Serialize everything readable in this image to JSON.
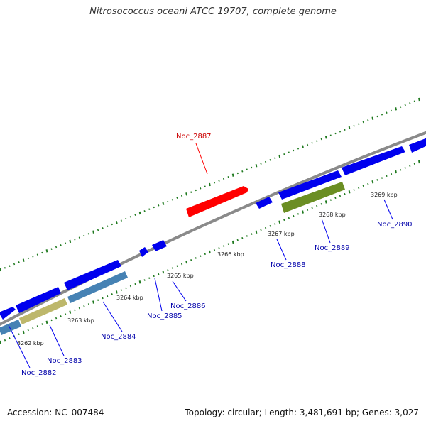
{
  "title": "Nitrosococcus oceani ATCC 19707, complete genome",
  "accession_text": "Accession: NC_007484",
  "summary_text": "Topology: circular; Length: 3,481,691 bp; Genes: 3,027",
  "colors": {
    "backbone": "#8a8a8a",
    "tick": "#1f7a1f",
    "cds": "#0000ee",
    "highlight": "#ff0000",
    "steelblue": "#4682b4",
    "khaki": "#bdb76b",
    "olive": "#6b8e23",
    "label_blue": "#0000aa",
    "label_red": "#cc0000"
  },
  "kbp_labels": [
    "3262 kbp",
    "3263 kbp",
    "3264 kbp",
    "3265 kbp",
    "3266 kbp",
    "3267 kbp",
    "3268 kbp",
    "3269 kbp"
  ],
  "gene_labels": [
    {
      "id": "Noc_2882",
      "color": "blue"
    },
    {
      "id": "Noc_2883",
      "color": "blue"
    },
    {
      "id": "Noc_2884",
      "color": "blue"
    },
    {
      "id": "Noc_2885",
      "color": "blue"
    },
    {
      "id": "Noc_2886",
      "color": "blue"
    },
    {
      "id": "Noc_2887",
      "color": "red"
    },
    {
      "id": "Noc_2888",
      "color": "blue"
    },
    {
      "id": "Noc_2889",
      "color": "blue"
    },
    {
      "id": "Noc_2890",
      "color": "blue"
    }
  ]
}
